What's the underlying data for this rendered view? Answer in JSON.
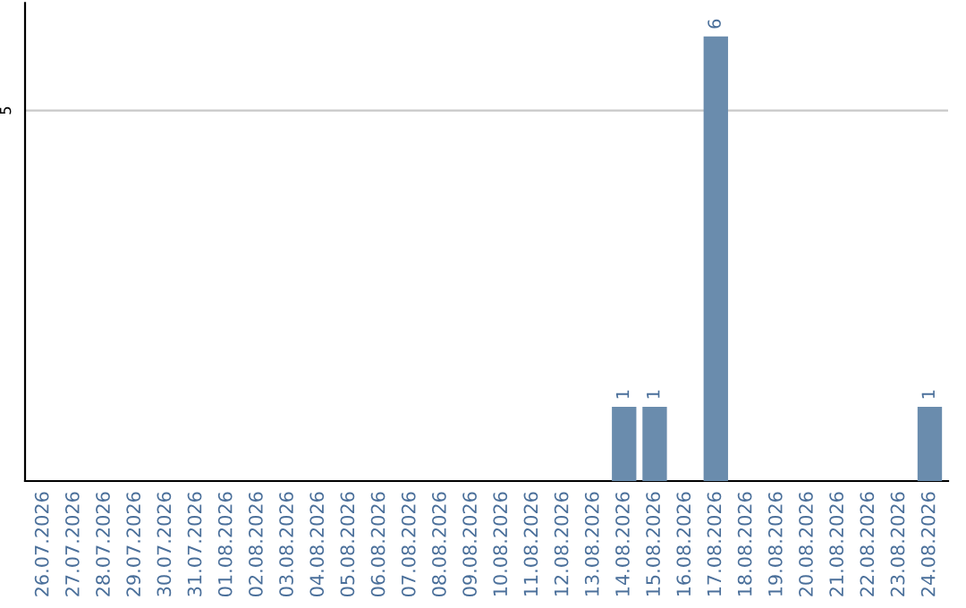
{
  "chart_data": {
    "type": "bar",
    "categories": [
      "26.07.2026",
      "27.07.2026",
      "28.07.2026",
      "29.07.2026",
      "30.07.2026",
      "31.07.2026",
      "01.08.2026",
      "02.08.2026",
      "03.08.2026",
      "04.08.2026",
      "05.08.2026",
      "06.08.2026",
      "07.08.2026",
      "08.08.2026",
      "09.08.2026",
      "10.08.2026",
      "11.08.2026",
      "12.08.2026",
      "13.08.2026",
      "14.08.2026",
      "15.08.2026",
      "16.08.2026",
      "17.08.2026",
      "18.08.2026",
      "19.08.2026",
      "20.08.2026",
      "21.08.2026",
      "22.08.2026",
      "23.08.2026",
      "24.08.2026"
    ],
    "values": [
      null,
      null,
      null,
      null,
      null,
      null,
      null,
      null,
      null,
      null,
      null,
      null,
      null,
      null,
      null,
      null,
      null,
      null,
      null,
      1,
      1,
      null,
      6,
      null,
      null,
      null,
      null,
      null,
      null,
      1
    ],
    "data_labels": true,
    "color": "#6a8cad",
    "ylim": [
      0,
      6.45
    ],
    "ref_lines": [
      {
        "axis": "y",
        "value": 5,
        "label": "5",
        "color": "#c8c8c8"
      }
    ]
  }
}
